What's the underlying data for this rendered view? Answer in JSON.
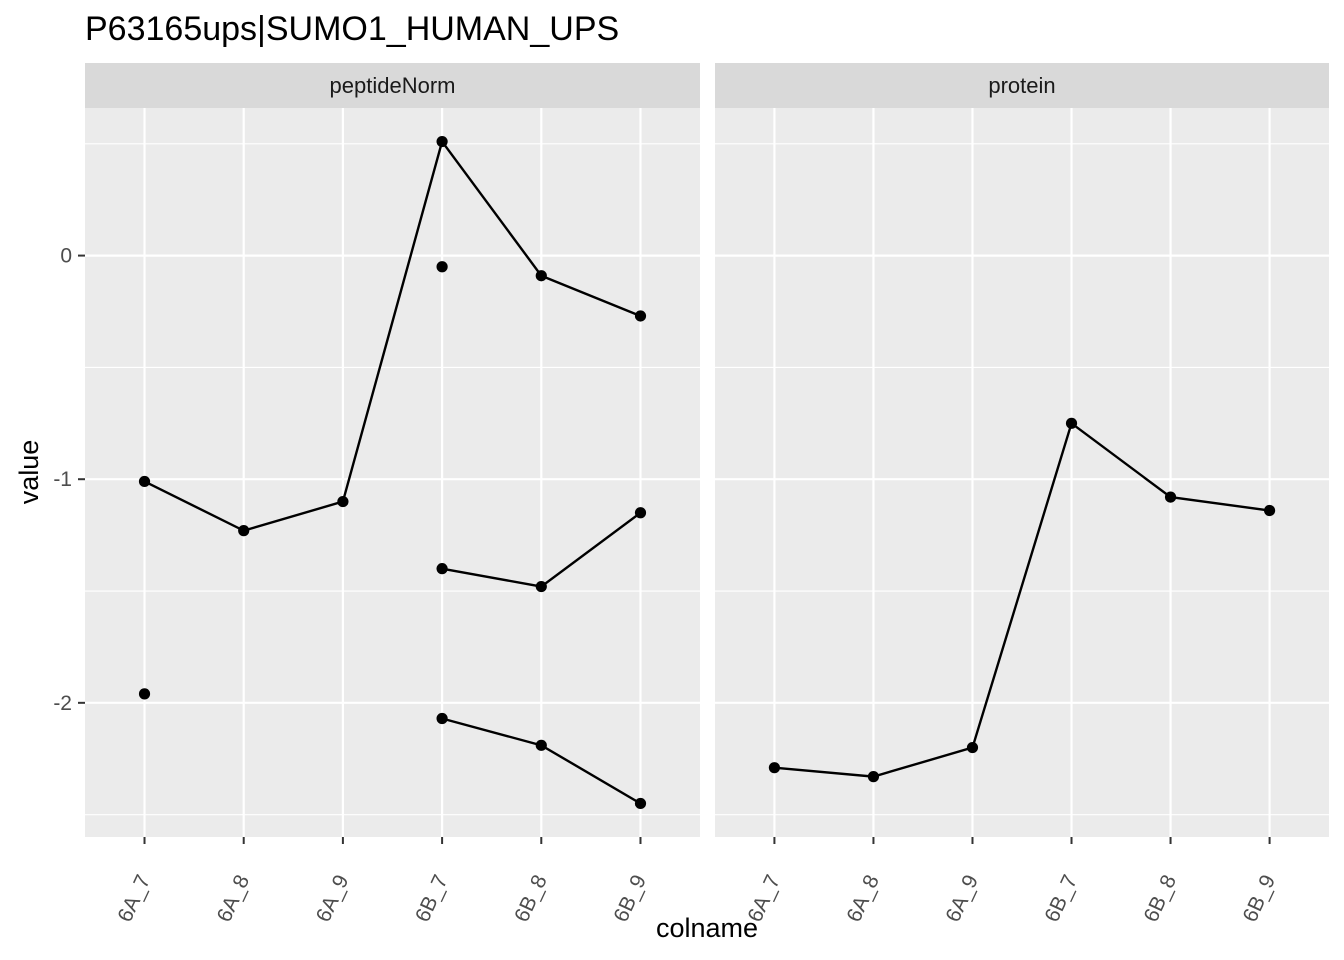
{
  "chart_data": {
    "type": "line",
    "title": "P63165ups|SUMO1_HUMAN_UPS",
    "xlabel": "colname",
    "ylabel": "value",
    "categories": [
      "6A_7",
      "6A_8",
      "6A_9",
      "6B_7",
      "6B_8",
      "6B_9"
    ],
    "ylim": [
      -2.6,
      0.66
    ],
    "yticks": [
      -2,
      -1,
      0
    ],
    "grid": true,
    "panels": [
      {
        "name": "peptideNorm",
        "series": [
          {
            "x": [
              "6A_7",
              "6A_8",
              "6A_9",
              "6B_7",
              "6B_8",
              "6B_9"
            ],
            "y": [
              -1.01,
              -1.23,
              -1.1,
              0.51,
              -0.09,
              -0.27
            ]
          },
          {
            "x": [
              "6B_7",
              "6B_8",
              "6B_9"
            ],
            "y": [
              -1.4,
              -1.48,
              -1.15
            ]
          },
          {
            "x": [
              "6B_7",
              "6B_8",
              "6B_9"
            ],
            "y": [
              -2.07,
              -2.19,
              -2.45
            ]
          },
          {
            "x": [
              "6B_7"
            ],
            "y": [
              -0.05
            ]
          },
          {
            "x": [
              "6A_7"
            ],
            "y": [
              -1.96
            ]
          }
        ]
      },
      {
        "name": "protein",
        "series": [
          {
            "x": [
              "6A_7",
              "6A_8",
              "6A_9",
              "6B_7",
              "6B_8",
              "6B_9"
            ],
            "y": [
              -2.29,
              -2.33,
              -2.2,
              -0.75,
              -1.08,
              -1.14
            ]
          }
        ]
      }
    ]
  }
}
